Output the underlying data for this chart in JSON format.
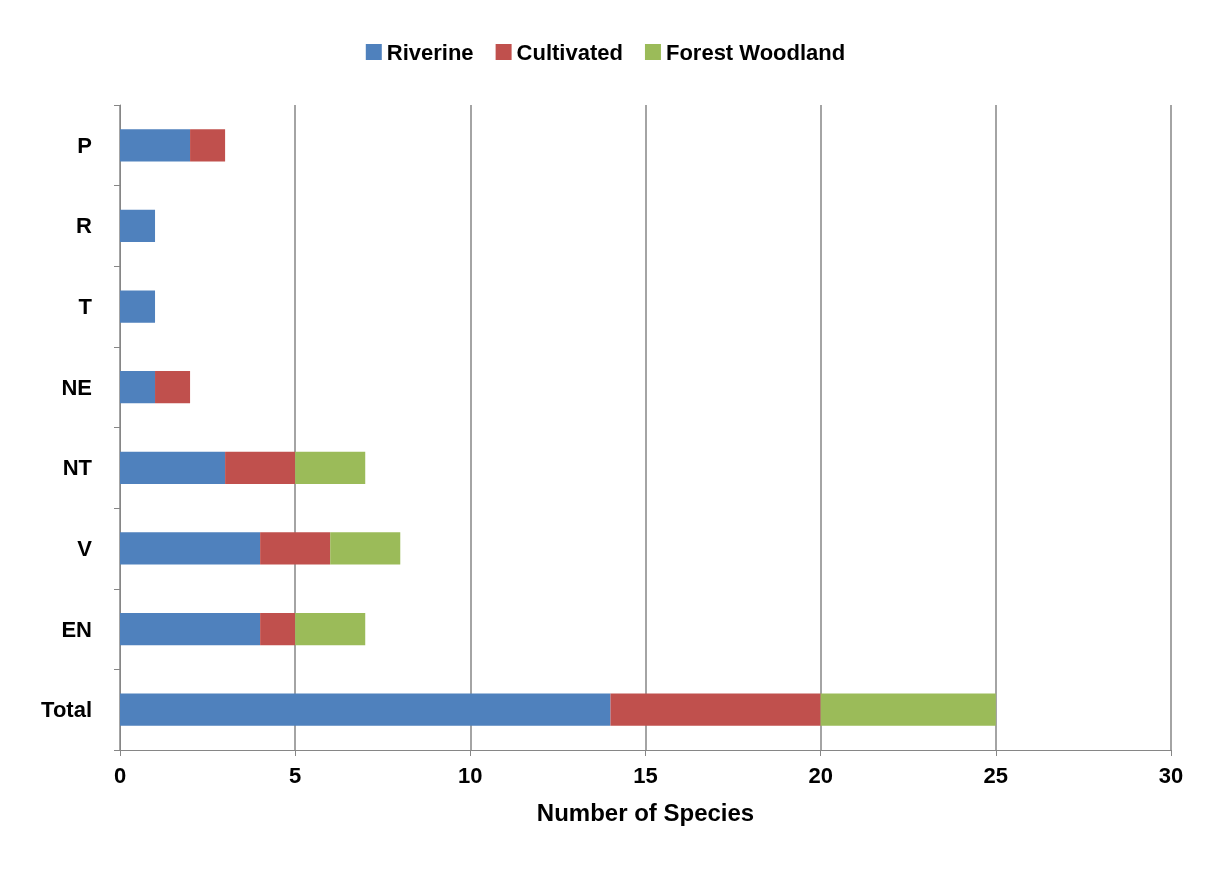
{
  "chart_data": {
    "type": "bar",
    "orientation": "horizontal",
    "stacked": true,
    "xlabel": "Number of Species",
    "categories": [
      "P",
      "R",
      "T",
      "NE",
      "NT",
      "V",
      "EN",
      "Total"
    ],
    "series": [
      {
        "name": "Riverine",
        "color": "#4f81bd",
        "values": [
          2,
          1,
          1,
          1,
          3,
          4,
          4,
          14
        ]
      },
      {
        "name": "Cultivated",
        "color": "#c0504d",
        "values": [
          1,
          0,
          0,
          1,
          2,
          2,
          1,
          6
        ]
      },
      {
        "name": "Forest Woodland",
        "color": "#9bbb59",
        "values": [
          0,
          0,
          0,
          0,
          2,
          2,
          2,
          5
        ]
      }
    ],
    "xlim": [
      0,
      30
    ],
    "xticks": [
      0,
      5,
      10,
      15,
      20,
      25,
      30
    ],
    "grid": "x",
    "legend": "top"
  }
}
